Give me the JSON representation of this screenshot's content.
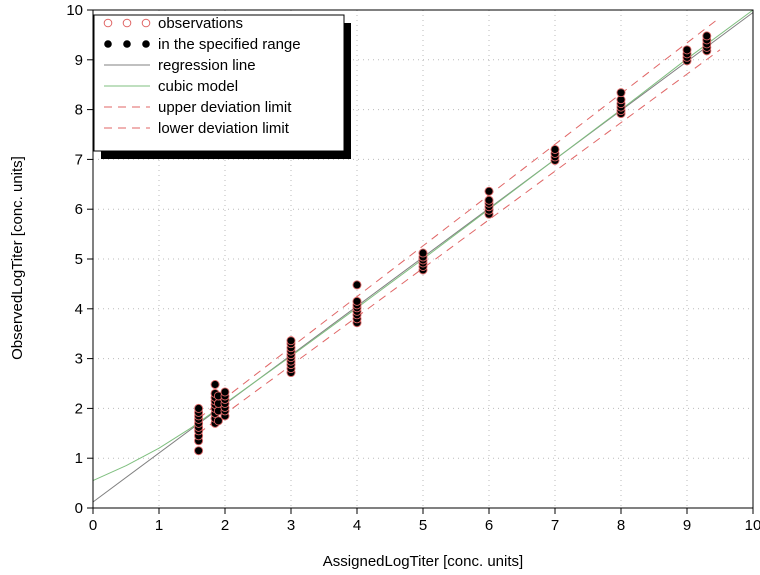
{
  "chart_data": {
    "type": "scatter",
    "xlabel": "AssignedLogTiter  [conc. units]",
    "ylabel": "ObservedLogTiter  [conc. units]",
    "xlim": [
      0,
      10
    ],
    "ylim": [
      0,
      10
    ],
    "x_ticks": [
      "0",
      "1",
      "2",
      "3",
      "4",
      "5",
      "6",
      "7",
      "8",
      "9",
      "10"
    ],
    "y_ticks": [
      "0",
      "1",
      "2",
      "3",
      "4",
      "5",
      "6",
      "7",
      "8",
      "9",
      "10"
    ],
    "grid": "dotted",
    "legend_position": "top-left",
    "legend": [
      {
        "label": "observations",
        "marker": "open-circle",
        "color": "#e06666"
      },
      {
        "label": "in the specified range",
        "marker": "filled-circle",
        "color": "#000000"
      },
      {
        "label": "regression line",
        "line": "solid",
        "color": "#808080"
      },
      {
        "label": "cubic model",
        "line": "solid",
        "color": "#7fbf7f"
      },
      {
        "label": "upper deviation limit",
        "line": "dashed",
        "color": "#e06666"
      },
      {
        "label": "lower deviation limit",
        "line": "dashed",
        "color": "#e06666"
      }
    ],
    "series": [
      {
        "name": "in the specified range",
        "points": [
          [
            1.6,
            1.15
          ],
          [
            1.6,
            1.35
          ],
          [
            1.6,
            1.45
          ],
          [
            1.6,
            1.55
          ],
          [
            1.6,
            1.62
          ],
          [
            1.6,
            1.7
          ],
          [
            1.6,
            1.78
          ],
          [
            1.6,
            1.85
          ],
          [
            1.6,
            1.92
          ],
          [
            1.6,
            2.0
          ],
          [
            1.85,
            1.7
          ],
          [
            1.85,
            1.8
          ],
          [
            1.85,
            1.9
          ],
          [
            1.85,
            2.0
          ],
          [
            1.85,
            2.08
          ],
          [
            1.85,
            2.15
          ],
          [
            1.85,
            2.22
          ],
          [
            1.85,
            2.3
          ],
          [
            1.85,
            2.48
          ],
          [
            1.9,
            1.75
          ],
          [
            1.9,
            1.95
          ],
          [
            1.9,
            2.1
          ],
          [
            1.9,
            2.25
          ],
          [
            2.0,
            1.85
          ],
          [
            2.0,
            1.95
          ],
          [
            2.0,
            2.02
          ],
          [
            2.0,
            2.1
          ],
          [
            2.0,
            2.18
          ],
          [
            2.0,
            2.25
          ],
          [
            2.0,
            2.33
          ],
          [
            3.0,
            2.72
          ],
          [
            3.0,
            2.8
          ],
          [
            3.0,
            2.88
          ],
          [
            3.0,
            2.95
          ],
          [
            3.0,
            3.02
          ],
          [
            3.0,
            3.08
          ],
          [
            3.0,
            3.15
          ],
          [
            3.0,
            3.22
          ],
          [
            3.0,
            3.3
          ],
          [
            3.0,
            3.36
          ],
          [
            4.0,
            3.72
          ],
          [
            4.0,
            3.8
          ],
          [
            4.0,
            3.88
          ],
          [
            4.0,
            3.95
          ],
          [
            4.0,
            4.02
          ],
          [
            4.0,
            4.08
          ],
          [
            4.0,
            4.15
          ],
          [
            4.0,
            4.48
          ],
          [
            5.0,
            4.78
          ],
          [
            5.0,
            4.85
          ],
          [
            5.0,
            4.92
          ],
          [
            5.0,
            4.98
          ],
          [
            5.0,
            5.04
          ],
          [
            5.0,
            5.12
          ],
          [
            6.0,
            5.9
          ],
          [
            6.0,
            5.98
          ],
          [
            6.0,
            6.05
          ],
          [
            6.0,
            6.12
          ],
          [
            6.0,
            6.18
          ],
          [
            6.0,
            6.36
          ],
          [
            7.0,
            6.98
          ],
          [
            7.0,
            7.05
          ],
          [
            7.0,
            7.12
          ],
          [
            7.0,
            7.2
          ],
          [
            8.0,
            7.92
          ],
          [
            8.0,
            7.98
          ],
          [
            8.0,
            8.05
          ],
          [
            8.0,
            8.12
          ],
          [
            8.0,
            8.2
          ],
          [
            8.0,
            8.34
          ],
          [
            9.0,
            8.98
          ],
          [
            9.0,
            9.05
          ],
          [
            9.0,
            9.12
          ],
          [
            9.0,
            9.2
          ],
          [
            9.3,
            9.18
          ],
          [
            9.3,
            9.25
          ],
          [
            9.3,
            9.32
          ],
          [
            9.3,
            9.4
          ],
          [
            9.3,
            9.48
          ]
        ]
      },
      {
        "name": "regression line",
        "points": [
          [
            0,
            0.12
          ],
          [
            10,
            9.95
          ]
        ]
      },
      {
        "name": "cubic model",
        "points": [
          [
            0,
            0.55
          ],
          [
            0.5,
            0.85
          ],
          [
            1,
            1.2
          ],
          [
            1.5,
            1.62
          ],
          [
            2,
            2.1
          ],
          [
            3,
            3.05
          ],
          [
            4,
            4.02
          ],
          [
            5,
            5.0
          ],
          [
            6,
            6.0
          ],
          [
            7,
            7.0
          ],
          [
            8,
            8.0
          ],
          [
            9,
            9.02
          ],
          [
            10,
            10.0
          ]
        ]
      },
      {
        "name": "upper deviation limit",
        "points": [
          [
            1.6,
            1.8
          ],
          [
            9.5,
            9.85
          ]
        ]
      },
      {
        "name": "lower deviation limit",
        "points": [
          [
            1.6,
            1.5
          ],
          [
            9.5,
            9.2
          ]
        ]
      }
    ]
  }
}
